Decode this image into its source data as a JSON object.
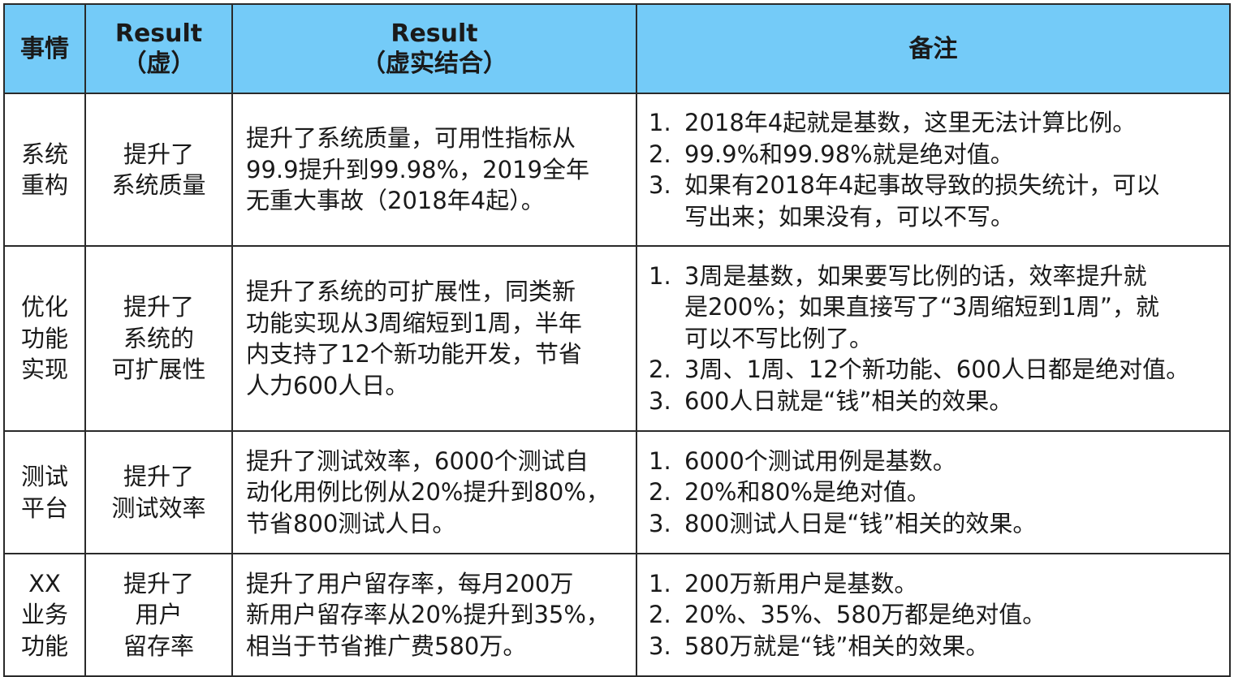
{
  "header": {
    "col1": "事情",
    "col2_l1": "Result",
    "col2_l2": "（虚）",
    "col3_l1": "Result",
    "col3_l2": "（虚实结合）",
    "col4": "备注"
  },
  "rows": [
    {
      "name": [
        "系统",
        "重构"
      ],
      "result": [
        "提升了",
        "系统质量"
      ],
      "desc": [
        "提升了系统质量，可用性指标从",
        "99.9提升到99.98%，2019全年",
        "无重大事故（2018年4起）。"
      ],
      "notes": [
        [
          "2018年4起就是基数，这里无法计算比例。"
        ],
        [
          "99.9%和99.98%就是绝对值。"
        ],
        [
          "如果有2018年4起事故导致的损失统计，可以",
          "写出来；如果没有，可以不写。"
        ]
      ]
    },
    {
      "name": [
        "优化",
        "功能",
        "实现"
      ],
      "result": [
        "提升了",
        "系统的",
        "可扩展性"
      ],
      "desc": [
        "提升了系统的可扩展性，同类新",
        "功能实现从3周缩短到1周，半年",
        "内支持了12个新功能开发，节省",
        "人力600人日。"
      ],
      "notes": [
        [
          "3周是基数，如果要写比例的话，效率提升就",
          "是200%；如果直接写了“3周缩短到1周”，就",
          "可以不写比例了。"
        ],
        [
          "3周、1周、12个新功能、600人日都是绝对值。"
        ],
        [
          "600人日就是“钱”相关的效果。"
        ]
      ]
    },
    {
      "name": [
        "测试",
        "平台"
      ],
      "result": [
        "提升了",
        "测试效率"
      ],
      "desc": [
        "提升了测试效率，6000个测试自",
        "动化用例比例从20%提升到80%，",
        "节省800测试人日。"
      ],
      "notes": [
        [
          "6000个测试用例是基数。"
        ],
        [
          "20%和80%是绝对值。"
        ],
        [
          "800测试人日是“钱”相关的效果。"
        ]
      ]
    },
    {
      "name": [
        "XX",
        "业务",
        "功能"
      ],
      "result": [
        "提升了",
        "用户",
        "留存率"
      ],
      "desc": [
        "提升了用户留存率，每月200万",
        "新用户留存率从20%提升到35%，",
        "相当于节省推广费580万。"
      ],
      "notes": [
        [
          "200万新用户是基数。"
        ],
        [
          "20%、35%、580万都是绝对值。"
        ],
        [
          "580万就是“钱”相关的效果。"
        ]
      ]
    }
  ],
  "note_numbers": [
    "1.",
    "2.",
    "3."
  ],
  "colors": {
    "header_bg": "#74cbf8",
    "border": "#2a2a2a",
    "text": "#1a1a1a"
  }
}
